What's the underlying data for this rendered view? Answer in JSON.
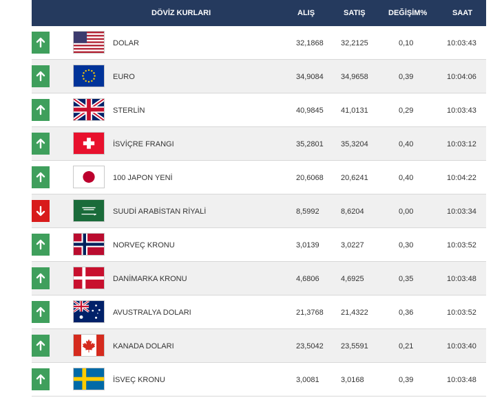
{
  "header": {
    "title": "DÖVİZ KURLARI",
    "buy": "ALIŞ",
    "sell": "SATIŞ",
    "change": "DEĞİŞİM%",
    "time": "SAAT"
  },
  "colors": {
    "header_bg": "#253a5e",
    "up": "#3f9f5c",
    "down": "#d81b1b"
  },
  "rows": [
    {
      "name": "DOLAR",
      "buy": "32,1868",
      "sell": "32,2125",
      "change": "0,10",
      "time": "10:03:43",
      "trend": "up",
      "flag": "us-flag-icon"
    },
    {
      "name": "EURO",
      "buy": "34,9084",
      "sell": "34,9658",
      "change": "0,39",
      "time": "10:04:06",
      "trend": "up",
      "flag": "eu-flag-icon"
    },
    {
      "name": "STERLİN",
      "buy": "40,9845",
      "sell": "41,0131",
      "change": "0,29",
      "time": "10:03:43",
      "trend": "up",
      "flag": "uk-flag-icon"
    },
    {
      "name": "İSVİÇRE FRANGI",
      "buy": "35,2801",
      "sell": "35,3204",
      "change": "0,40",
      "time": "10:03:12",
      "trend": "up",
      "flag": "swiss-flag-icon"
    },
    {
      "name": "100 JAPON YENİ",
      "buy": "20,6068",
      "sell": "20,6241",
      "change": "0,40",
      "time": "10:04:22",
      "trend": "up",
      "flag": "japan-flag-icon"
    },
    {
      "name": "SUUDİ ARABİSTAN RİYALİ",
      "buy": "8,5992",
      "sell": "8,6204",
      "change": "0,00",
      "time": "10:03:34",
      "trend": "down",
      "flag": "saudi-flag-icon"
    },
    {
      "name": "NORVEÇ KRONU",
      "buy": "3,0139",
      "sell": "3,0227",
      "change": "0,30",
      "time": "10:03:52",
      "trend": "up",
      "flag": "norway-flag-icon"
    },
    {
      "name": "DANİMARKA KRONU",
      "buy": "4,6806",
      "sell": "4,6925",
      "change": "0,35",
      "time": "10:03:48",
      "trend": "up",
      "flag": "denmark-flag-icon"
    },
    {
      "name": "AVUSTRALYA DOLARI",
      "buy": "21,3768",
      "sell": "21,4322",
      "change": "0,36",
      "time": "10:03:52",
      "trend": "up",
      "flag": "australia-flag-icon"
    },
    {
      "name": "KANADA DOLARI",
      "buy": "23,5042",
      "sell": "23,5591",
      "change": "0,21",
      "time": "10:03:40",
      "trend": "up",
      "flag": "canada-flag-icon"
    },
    {
      "name": "İSVEÇ KRONU",
      "buy": "3,0081",
      "sell": "3,0168",
      "change": "0,39",
      "time": "10:03:48",
      "trend": "up",
      "flag": "sweden-flag-icon"
    }
  ]
}
